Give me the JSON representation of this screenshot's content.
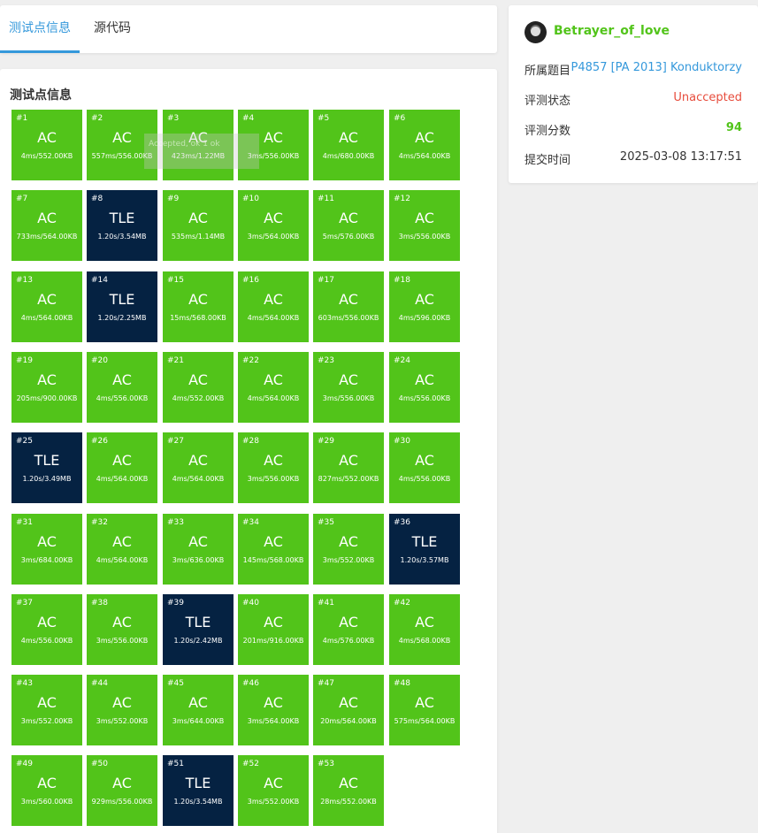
{
  "tabs": [
    {
      "label": "测试点信息",
      "active": true
    },
    {
      "label": "源代码",
      "active": false
    }
  ],
  "section_title": "测试点信息",
  "tooltip": "Accepted, ok 1 ok",
  "cases": [
    {
      "num": "#1",
      "status": "AC",
      "result": "4ms/552.00KB"
    },
    {
      "num": "#2",
      "status": "AC",
      "result": "557ms/556.00KB"
    },
    {
      "num": "#3",
      "status": "AC",
      "result": "423ms/1.22MB"
    },
    {
      "num": "#4",
      "status": "AC",
      "result": "3ms/556.00KB"
    },
    {
      "num": "#5",
      "status": "AC",
      "result": "4ms/680.00KB"
    },
    {
      "num": "#6",
      "status": "AC",
      "result": "4ms/564.00KB"
    },
    {
      "num": "#7",
      "status": "AC",
      "result": "733ms/564.00KB"
    },
    {
      "num": "#8",
      "status": "TLE",
      "result": "1.20s/3.54MB"
    },
    {
      "num": "#9",
      "status": "AC",
      "result": "535ms/1.14MB"
    },
    {
      "num": "#10",
      "status": "AC",
      "result": "3ms/564.00KB"
    },
    {
      "num": "#11",
      "status": "AC",
      "result": "5ms/576.00KB"
    },
    {
      "num": "#12",
      "status": "AC",
      "result": "3ms/556.00KB"
    },
    {
      "num": "#13",
      "status": "AC",
      "result": "4ms/564.00KB"
    },
    {
      "num": "#14",
      "status": "TLE",
      "result": "1.20s/2.25MB"
    },
    {
      "num": "#15",
      "status": "AC",
      "result": "15ms/568.00KB"
    },
    {
      "num": "#16",
      "status": "AC",
      "result": "4ms/564.00KB"
    },
    {
      "num": "#17",
      "status": "AC",
      "result": "603ms/556.00KB"
    },
    {
      "num": "#18",
      "status": "AC",
      "result": "4ms/596.00KB"
    },
    {
      "num": "#19",
      "status": "AC",
      "result": "205ms/900.00KB"
    },
    {
      "num": "#20",
      "status": "AC",
      "result": "4ms/556.00KB"
    },
    {
      "num": "#21",
      "status": "AC",
      "result": "4ms/552.00KB"
    },
    {
      "num": "#22",
      "status": "AC",
      "result": "4ms/564.00KB"
    },
    {
      "num": "#23",
      "status": "AC",
      "result": "3ms/556.00KB"
    },
    {
      "num": "#24",
      "status": "AC",
      "result": "4ms/556.00KB"
    },
    {
      "num": "#25",
      "status": "TLE",
      "result": "1.20s/3.49MB"
    },
    {
      "num": "#26",
      "status": "AC",
      "result": "4ms/564.00KB"
    },
    {
      "num": "#27",
      "status": "AC",
      "result": "4ms/564.00KB"
    },
    {
      "num": "#28",
      "status": "AC",
      "result": "3ms/556.00KB"
    },
    {
      "num": "#29",
      "status": "AC",
      "result": "827ms/552.00KB"
    },
    {
      "num": "#30",
      "status": "AC",
      "result": "4ms/556.00KB"
    },
    {
      "num": "#31",
      "status": "AC",
      "result": "3ms/684.00KB"
    },
    {
      "num": "#32",
      "status": "AC",
      "result": "4ms/564.00KB"
    },
    {
      "num": "#33",
      "status": "AC",
      "result": "3ms/636.00KB"
    },
    {
      "num": "#34",
      "status": "AC",
      "result": "145ms/568.00KB"
    },
    {
      "num": "#35",
      "status": "AC",
      "result": "3ms/552.00KB"
    },
    {
      "num": "#36",
      "status": "TLE",
      "result": "1.20s/3.57MB"
    },
    {
      "num": "#37",
      "status": "AC",
      "result": "4ms/556.00KB"
    },
    {
      "num": "#38",
      "status": "AC",
      "result": "3ms/556.00KB"
    },
    {
      "num": "#39",
      "status": "TLE",
      "result": "1.20s/2.42MB"
    },
    {
      "num": "#40",
      "status": "AC",
      "result": "201ms/916.00KB"
    },
    {
      "num": "#41",
      "status": "AC",
      "result": "4ms/576.00KB"
    },
    {
      "num": "#42",
      "status": "AC",
      "result": "4ms/568.00KB"
    },
    {
      "num": "#43",
      "status": "AC",
      "result": "3ms/552.00KB"
    },
    {
      "num": "#44",
      "status": "AC",
      "result": "3ms/552.00KB"
    },
    {
      "num": "#45",
      "status": "AC",
      "result": "3ms/644.00KB"
    },
    {
      "num": "#46",
      "status": "AC",
      "result": "3ms/564.00KB"
    },
    {
      "num": "#47",
      "status": "AC",
      "result": "20ms/564.00KB"
    },
    {
      "num": "#48",
      "status": "AC",
      "result": "575ms/564.00KB"
    },
    {
      "num": "#49",
      "status": "AC",
      "result": "3ms/560.00KB"
    },
    {
      "num": "#50",
      "status": "AC",
      "result": "929ms/556.00KB"
    },
    {
      "num": "#51",
      "status": "TLE",
      "result": "1.20s/3.54MB"
    },
    {
      "num": "#52",
      "status": "AC",
      "result": "3ms/552.00KB"
    },
    {
      "num": "#53",
      "status": "AC",
      "result": "28ms/552.00KB"
    }
  ],
  "submission": {
    "avatar_icon": "user-avatar",
    "username": "Betrayer_of_love",
    "problem_label": "所属题目",
    "problem_value": "P4857 [PA 2013] Konduktorzy",
    "status_label": "评测状态",
    "status_value": "Unaccepted",
    "score_label": "评测分数",
    "score_value": "94",
    "time_label": "提交时间",
    "time_value": "2025-03-08 13:17:51"
  },
  "colors": {
    "ac": "#52c41a",
    "tle": "#052242",
    "accent": "#3498db",
    "unaccepted": "#e74c3c"
  }
}
